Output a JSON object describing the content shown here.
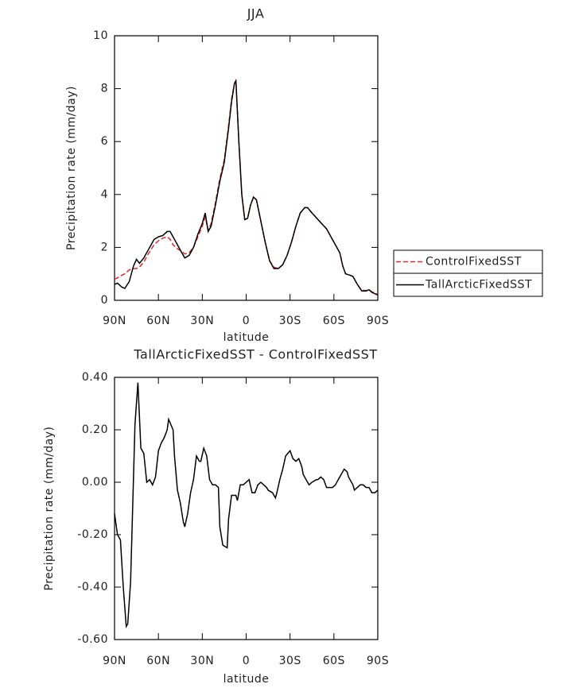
{
  "chart_data": [
    {
      "type": "line",
      "title": "JJA",
      "x_label": "latitude",
      "y_label": "Precipitation rate (mm/day)",
      "x": [
        90,
        88,
        85,
        83,
        80,
        77,
        75,
        73,
        70,
        67,
        63,
        60,
        57,
        54,
        52,
        50,
        47,
        44,
        42,
        39,
        36,
        33,
        30,
        28,
        26,
        24,
        21,
        18,
        15,
        12,
        10,
        8,
        7,
        5,
        3,
        1,
        -1,
        -3,
        -5,
        -7,
        -10,
        -13,
        -16,
        -19,
        -22,
        -25,
        -28,
        -31,
        -34,
        -37,
        -40,
        -42,
        -45,
        -50,
        -55,
        -60,
        -64,
        -66,
        -68,
        -71,
        -73,
        -76,
        -79,
        -82,
        -84,
        -86,
        -88,
        -90
      ],
      "series": [
        {
          "name": "ControlFixedSST",
          "color": "#e8262b",
          "line_style": "dashed",
          "values": [
            0.8,
            0.85,
            0.95,
            1.0,
            1.15,
            1.2,
            1.2,
            1.25,
            1.45,
            1.75,
            2.1,
            2.25,
            2.35,
            2.4,
            2.3,
            2.1,
            1.95,
            1.85,
            1.75,
            1.8,
            2.0,
            2.4,
            2.8,
            3.15,
            2.65,
            2.9,
            3.7,
            4.6,
            5.3,
            6.6,
            7.6,
            8.2,
            8.3,
            6.0,
            4.0,
            3.05,
            3.1,
            3.6,
            3.9,
            3.8,
            3.0,
            2.2,
            1.5,
            1.25,
            1.2,
            1.35,
            1.7,
            2.2,
            2.8,
            3.3,
            3.5,
            3.5,
            3.3,
            3.0,
            2.7,
            2.2,
            1.8,
            1.3,
            1.0,
            0.95,
            0.9,
            0.6,
            0.38,
            0.37,
            0.4,
            0.32,
            0.28,
            0.22
          ]
        },
        {
          "name": "TallArcticFixedSST",
          "color": "#000000",
          "line_style": "solid",
          "values": [
            0.6,
            0.65,
            0.5,
            0.45,
            0.7,
            1.3,
            1.55,
            1.4,
            1.6,
            1.9,
            2.3,
            2.4,
            2.45,
            2.6,
            2.6,
            2.4,
            2.1,
            1.8,
            1.6,
            1.7,
            2.0,
            2.5,
            2.9,
            3.3,
            2.6,
            2.8,
            3.6,
            4.5,
            5.2,
            6.5,
            7.5,
            8.2,
            8.3,
            6.0,
            4.0,
            3.05,
            3.1,
            3.6,
            3.9,
            3.8,
            3.0,
            2.2,
            1.5,
            1.2,
            1.2,
            1.35,
            1.7,
            2.2,
            2.8,
            3.3,
            3.5,
            3.5,
            3.3,
            3.0,
            2.7,
            2.2,
            1.8,
            1.3,
            1.0,
            0.95,
            0.9,
            0.6,
            0.35,
            0.35,
            0.4,
            0.3,
            0.25,
            0.2
          ]
        }
      ],
      "xlim": [
        90,
        -90
      ],
      "xticks": [
        {
          "value": 90,
          "label": "90N"
        },
        {
          "value": 60,
          "label": "60N"
        },
        {
          "value": 30,
          "label": "30N"
        },
        0,
        {
          "value": -30,
          "label": "30S"
        },
        {
          "value": -60,
          "label": "60S"
        },
        {
          "value": -90,
          "label": "90S"
        }
      ],
      "ylim": [
        0,
        10
      ],
      "yticks": [
        0,
        2,
        4,
        6,
        8,
        10
      ],
      "legend": "outside right"
    },
    {
      "type": "line",
      "title": "TallArcticFixedSST - ControlFixedSST",
      "x_label": "latitude",
      "y_label": "Precipitation rate (mm/day)",
      "x": [
        90,
        88,
        86,
        84,
        82,
        81,
        79,
        76,
        74,
        72,
        70,
        68,
        66,
        64,
        62,
        60,
        58,
        56,
        54,
        53,
        50,
        49,
        47,
        45,
        43,
        42,
        40,
        38,
        36,
        34,
        32,
        31,
        29,
        27,
        25,
        23,
        21,
        19,
        18,
        16,
        13,
        12,
        10,
        7,
        6,
        4,
        2,
        0,
        -2,
        -4,
        -6,
        -8,
        -10,
        -12,
        -14,
        -15,
        -18,
        -20,
        -21,
        -23,
        -25,
        -27,
        -30,
        -32,
        -34,
        -36,
        -38,
        -39,
        -42,
        -43,
        -45,
        -48,
        -49,
        -51,
        -53,
        -55,
        -57,
        -59,
        -61,
        -63,
        -64,
        -67,
        -69,
        -70,
        -73,
        -74,
        -76,
        -78,
        -80,
        -82,
        -84,
        -86,
        -88,
        -90
      ],
      "series": [
        {
          "name": "TallArcticFixedSST - ControlFixedSST",
          "color": "#000000",
          "line_style": "solid",
          "values": [
            -0.12,
            -0.2,
            -0.22,
            -0.4,
            -0.55,
            -0.54,
            -0.38,
            0.22,
            0.38,
            0.13,
            0.11,
            0.0,
            0.01,
            -0.01,
            0.02,
            0.12,
            0.15,
            0.17,
            0.2,
            0.24,
            0.2,
            0.1,
            -0.03,
            -0.08,
            -0.15,
            -0.17,
            -0.12,
            -0.04,
            0.01,
            0.1,
            0.08,
            0.08,
            0.13,
            0.1,
            0.01,
            -0.01,
            -0.01,
            -0.02,
            -0.17,
            -0.24,
            -0.25,
            -0.14,
            -0.05,
            -0.05,
            -0.07,
            -0.01,
            -0.01,
            0.0,
            0.01,
            -0.04,
            -0.04,
            -0.01,
            0.0,
            -0.01,
            -0.02,
            -0.03,
            -0.04,
            -0.06,
            -0.04,
            0.01,
            0.05,
            0.1,
            0.12,
            0.09,
            0.08,
            0.09,
            0.06,
            0.03,
            0.0,
            -0.01,
            0.0,
            0.01,
            0.01,
            0.02,
            0.01,
            -0.02,
            -0.02,
            -0.02,
            -0.01,
            0.01,
            0.02,
            0.05,
            0.04,
            0.02,
            -0.01,
            -0.03,
            -0.02,
            -0.01,
            -0.01,
            -0.02,
            -0.02,
            -0.04,
            -0.04,
            -0.03
          ]
        }
      ],
      "xlim": [
        90,
        -90
      ],
      "xticks": [
        {
          "value": 90,
          "label": "90N"
        },
        {
          "value": 60,
          "label": "60N"
        },
        {
          "value": 30,
          "label": "30N"
        },
        0,
        {
          "value": -30,
          "label": "30S"
        },
        {
          "value": -60,
          "label": "60S"
        },
        {
          "value": -90,
          "label": "90S"
        }
      ],
      "ylim": [
        -0.6,
        0.4
      ],
      "yticks": [
        {
          "value": 0.4,
          "label": "0.40"
        },
        {
          "value": 0.2,
          "label": "0.20"
        },
        {
          "value": 0,
          "label": "0.00"
        },
        {
          "value": -0.2,
          "label": "-0.20"
        },
        {
          "value": -0.4,
          "label": "-0.40"
        },
        {
          "value": -0.6,
          "label": "-0.60"
        }
      ]
    }
  ]
}
